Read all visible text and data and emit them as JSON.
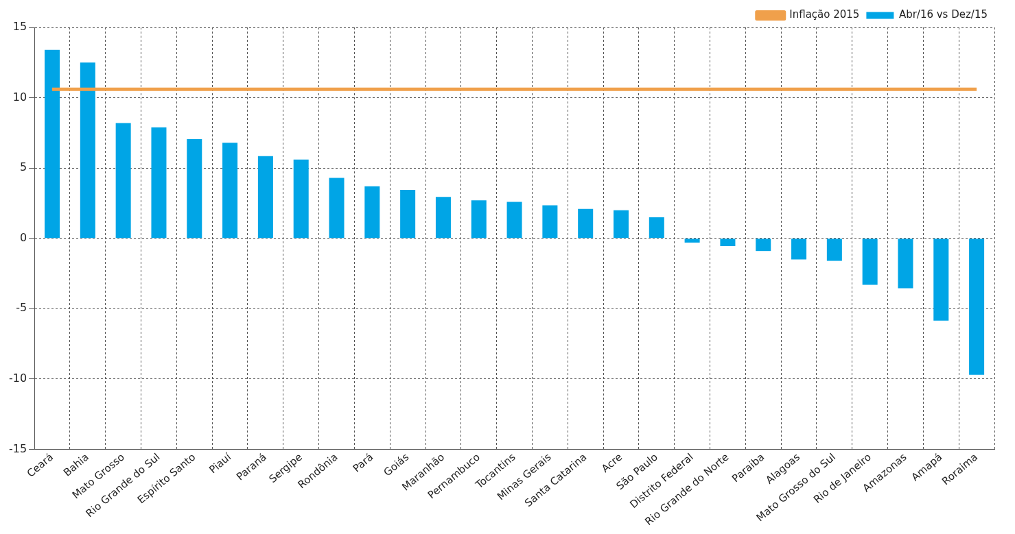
{
  "chart_data": {
    "type": "bar",
    "categories": [
      "Ceará",
      "Bahia",
      "Mato Grosso",
      "Rio Grande do Sul",
      "Espírito Santo",
      "Piauí",
      "Paraná",
      "Sergipe",
      "Rondônia",
      "Pará",
      "Goiás",
      "Maranhão",
      "Pernambuco",
      "Tocantins",
      "Minas Gerais",
      "Santa Catarina",
      "Acre",
      "São Paulo",
      "Distrito Federal",
      "Rio Grande do Norte",
      "Paraiba",
      "Alagoas",
      "Mato Grosso do Sul",
      "Rio de Janeiro",
      "Amazonas",
      "Amapá",
      "Roraima"
    ],
    "series": [
      {
        "name": "Abr/16 vs Dez/15",
        "color": "#00a5e6",
        "values": [
          13.4,
          12.5,
          8.2,
          7.9,
          7.05,
          6.8,
          5.85,
          5.6,
          4.3,
          3.7,
          3.45,
          2.95,
          2.7,
          2.6,
          2.35,
          2.1,
          2.0,
          1.5,
          -0.3,
          -0.55,
          -0.9,
          -1.5,
          -1.6,
          -3.3,
          -3.55,
          -5.85,
          -9.7
        ]
      },
      {
        "name": "Inflação 2015",
        "type": "line",
        "color": "#f0a04b",
        "values": [
          10.6,
          10.6,
          10.6,
          10.6,
          10.6,
          10.6,
          10.6,
          10.6,
          10.6,
          10.6,
          10.6,
          10.6,
          10.6,
          10.6,
          10.6,
          10.6,
          10.6,
          10.6,
          10.6,
          10.6,
          10.6,
          10.6,
          10.6,
          10.6,
          10.6,
          10.6,
          10.6
        ]
      }
    ],
    "ylim": [
      -15,
      15
    ],
    "yticks": [
      -15,
      -10,
      -5,
      0,
      5,
      10,
      15
    ],
    "grid": true,
    "legend": "top right",
    "marker": "none",
    "line_style": "solid"
  }
}
